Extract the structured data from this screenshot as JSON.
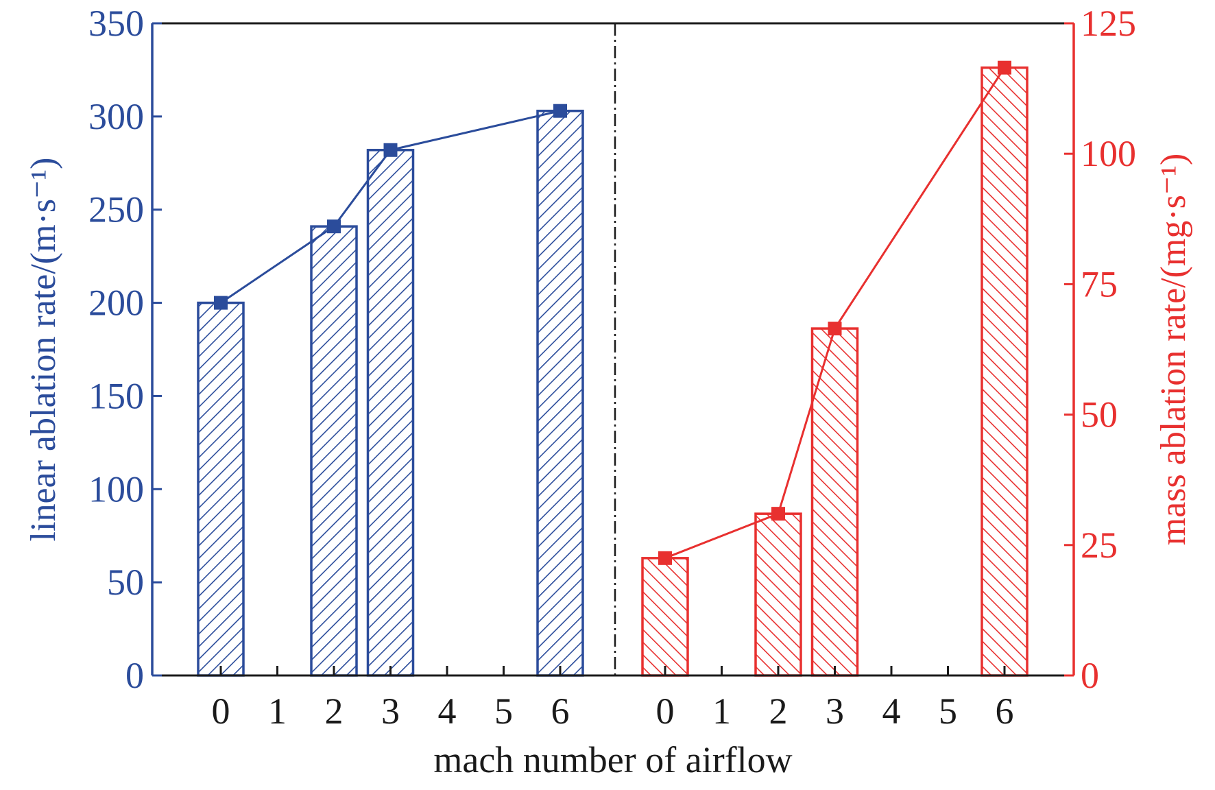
{
  "chart_data": {
    "type": "bar",
    "xlabel": "mach number of airflow",
    "colors": {
      "left": "#2b4c9b",
      "right": "#e8302f",
      "frame": "#1a1a1a"
    },
    "x_ticks": [
      "0",
      "1",
      "2",
      "3",
      "4",
      "5",
      "6"
    ],
    "panels": [
      {
        "side": "left",
        "ylabel": "linear ablation rate/(m·s⁻¹)",
        "ylim": [
          0,
          350
        ],
        "y_ticks": [
          0,
          50,
          100,
          150,
          200,
          250,
          300,
          350
        ],
        "x": [
          0,
          2,
          3,
          6
        ],
        "values": [
          200,
          241,
          282,
          303
        ]
      },
      {
        "side": "right",
        "ylabel": "mass ablation rate/(mg·s⁻¹)",
        "ylim": [
          0,
          125
        ],
        "y_ticks": [
          0,
          25,
          50,
          75,
          100,
          125
        ],
        "x": [
          0,
          2,
          3,
          6
        ],
        "values": [
          22.5,
          31,
          66.5,
          116.5
        ]
      }
    ]
  }
}
